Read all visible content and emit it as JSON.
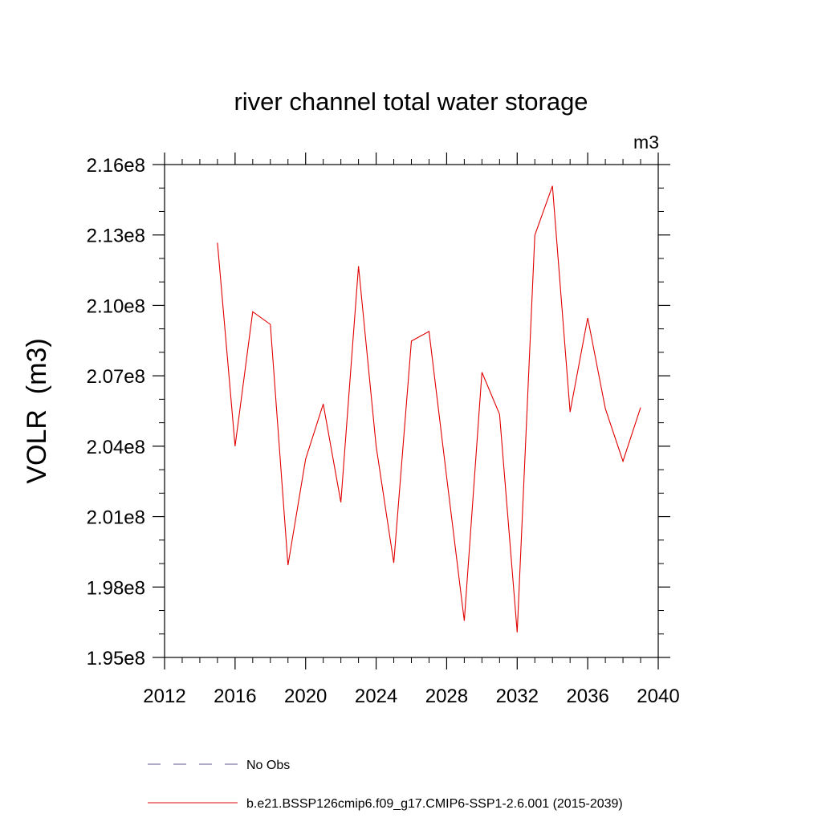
{
  "chart_data": {
    "type": "line",
    "title": "river channel total water storage",
    "units_label": "m3",
    "ylabel": "VOLR  (m3)",
    "xlabel": "",
    "xlim": [
      2012,
      2040
    ],
    "ylim": [
      195000000,
      216000000
    ],
    "x_ticks": [
      2012,
      2016,
      2020,
      2024,
      2028,
      2032,
      2036,
      2040
    ],
    "x_tick_labels": [
      "2012",
      "2016",
      "2020",
      "2024",
      "2028",
      "2032",
      "2036",
      "2040"
    ],
    "y_ticks": [
      195000000,
      198000000,
      201000000,
      204000000,
      207000000,
      210000000,
      213000000,
      216000000
    ],
    "y_tick_labels": [
      "1.95e8",
      "1.98e8",
      "2.01e8",
      "2.04e8",
      "2.07e8",
      "2.10e8",
      "2.13e8",
      "2.16e8"
    ],
    "grid": false,
    "legend_position": "bottom",
    "series": [
      {
        "name": "No Obs",
        "color": "#5a50a0",
        "dash": "dashed",
        "x": [],
        "values": []
      },
      {
        "name": "b.e21.BSSP126cmip6.f09_g17.CMIP6-SSP1-2.6.001 (2015-2039)",
        "color": "#e00000",
        "dash": "solid",
        "x": [
          2015,
          2016,
          2017,
          2018,
          2019,
          2020,
          2021,
          2022,
          2023,
          2024,
          2025,
          2026,
          2027,
          2028,
          2029,
          2030,
          2031,
          2032,
          2033,
          2034,
          2035,
          2036,
          2037,
          2038,
          2039
        ],
        "values": [
          212670000,
          204000000,
          209730000,
          209190000,
          198930000,
          203450000,
          205800000,
          201610000,
          211670000,
          204000000,
          199030000,
          208480000,
          208890000,
          202680000,
          196560000,
          207150000,
          205360000,
          196070000,
          212990000,
          215090000,
          205460000,
          209470000,
          205600000,
          203360000,
          205650000
        ]
      }
    ]
  }
}
